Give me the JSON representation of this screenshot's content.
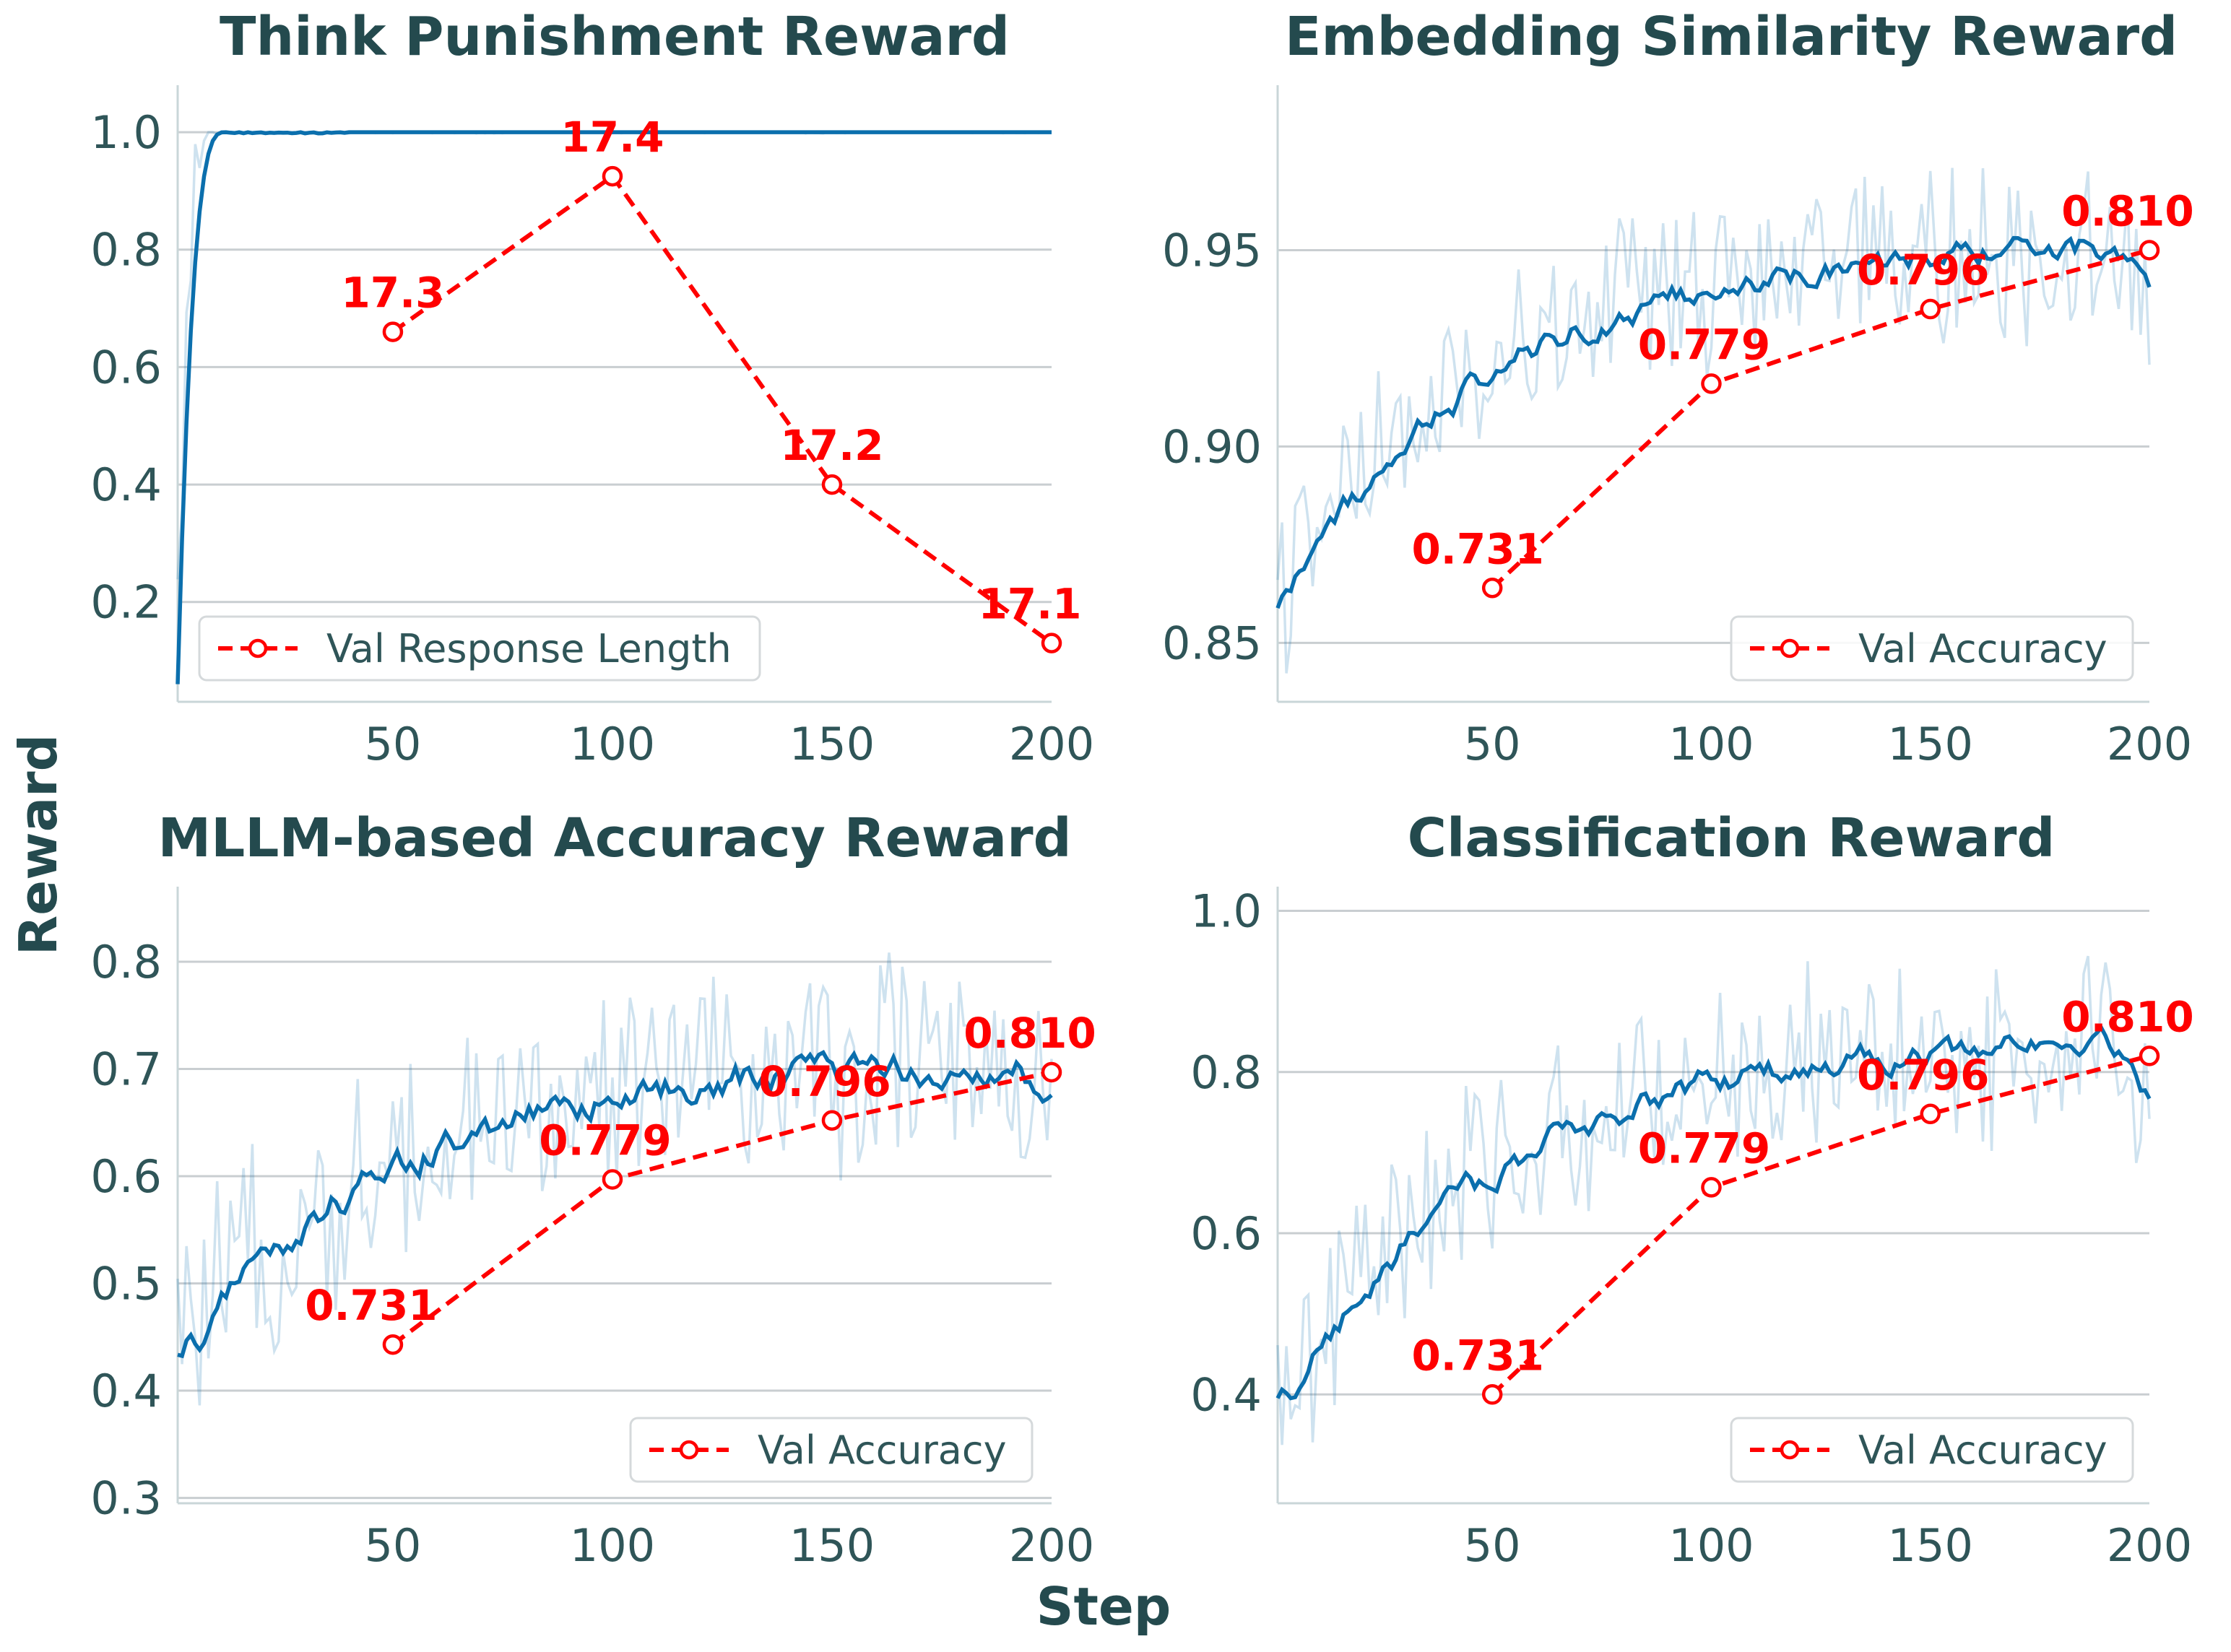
{
  "figure": {
    "xlabel": "Step",
    "ylabel": "Reward"
  },
  "chart_data": [
    {
      "type": "line",
      "title": "Think Punishment Reward",
      "xlim": [
        1,
        200
      ],
      "ylim": [
        0.03,
        1.08
      ],
      "xticks": [
        50,
        100,
        150,
        200
      ],
      "yticks": [
        0.2,
        0.4,
        0.6,
        0.8,
        1.0
      ],
      "ytick_labels": [
        "0.2",
        "0.4",
        "0.6",
        "0.8",
        "1.0"
      ],
      "grid": "horizontal",
      "reward": {
        "start": 0.06,
        "peak": 1.0,
        "rise_end_step": 12,
        "final": 1.0,
        "noise": 0.004
      },
      "validation": {
        "name": "Val Response Length",
        "x": [
          50,
          100,
          150,
          200
        ],
        "y": [
          0.66,
          0.925,
          0.4,
          0.13
        ],
        "labels": [
          "17.3",
          "17.4",
          "17.2",
          "17.1"
        ]
      },
      "legend": "lower-left"
    },
    {
      "type": "line",
      "title": "Embedding Similarity Reward",
      "xlim": [
        1,
        200
      ],
      "ylim": [
        0.835,
        0.992
      ],
      "xticks": [
        50,
        100,
        150,
        200
      ],
      "yticks": [
        0.85,
        0.9,
        0.95
      ],
      "ytick_labels": [
        "0.85",
        "0.90",
        "0.95"
      ],
      "grid": "horizontal",
      "reward": {
        "start": 0.86,
        "peak": 0.955,
        "final": 0.94,
        "noise": 0.02
      },
      "validation": {
        "name": "Val Accuracy",
        "x": [
          50,
          100,
          150,
          200
        ],
        "y": [
          0.864,
          0.916,
          0.935,
          0.95
        ],
        "labels": [
          "0.731",
          "0.779",
          "0.796",
          "0.810"
        ]
      },
      "legend": "lower-right"
    },
    {
      "type": "line",
      "title": "MLLM-based Accuracy Reward",
      "xlim": [
        1,
        200
      ],
      "ylim": [
        0.295,
        0.87
      ],
      "xticks": [
        50,
        100,
        150,
        200
      ],
      "yticks": [
        0.3,
        0.4,
        0.5,
        0.6,
        0.7,
        0.8
      ],
      "ytick_labels": [
        "0.3",
        "0.4",
        "0.5",
        "0.6",
        "0.7",
        "0.8"
      ],
      "grid": "horizontal",
      "reward": {
        "start": 0.43,
        "peak": 0.72,
        "final": 0.66,
        "noise": 0.09
      },
      "validation": {
        "name": "Val Accuracy",
        "x": [
          50,
          100,
          150,
          200
        ],
        "y": [
          0.443,
          0.597,
          0.652,
          0.697
        ],
        "labels": [
          "0.731",
          "0.779",
          "0.796",
          "0.810"
        ]
      },
      "legend": "lower-right"
    },
    {
      "type": "line",
      "title": "Classification Reward",
      "xlim": [
        1,
        200
      ],
      "ylim": [
        0.265,
        1.03
      ],
      "xticks": [
        50,
        100,
        150,
        200
      ],
      "yticks": [
        0.4,
        0.6,
        0.8,
        1.0
      ],
      "ytick_labels": [
        "0.4",
        "0.6",
        "0.8",
        "1.0"
      ],
      "grid": "horizontal",
      "reward": {
        "start": 0.38,
        "peak": 0.86,
        "final": 0.75,
        "noise": 0.1
      },
      "validation": {
        "name": "Val Accuracy",
        "x": [
          50,
          100,
          150,
          200
        ],
        "y": [
          0.4,
          0.657,
          0.748,
          0.82
        ],
        "labels": [
          "0.731",
          "0.779",
          "0.796",
          "0.810"
        ]
      },
      "legend": "lower-right"
    }
  ]
}
